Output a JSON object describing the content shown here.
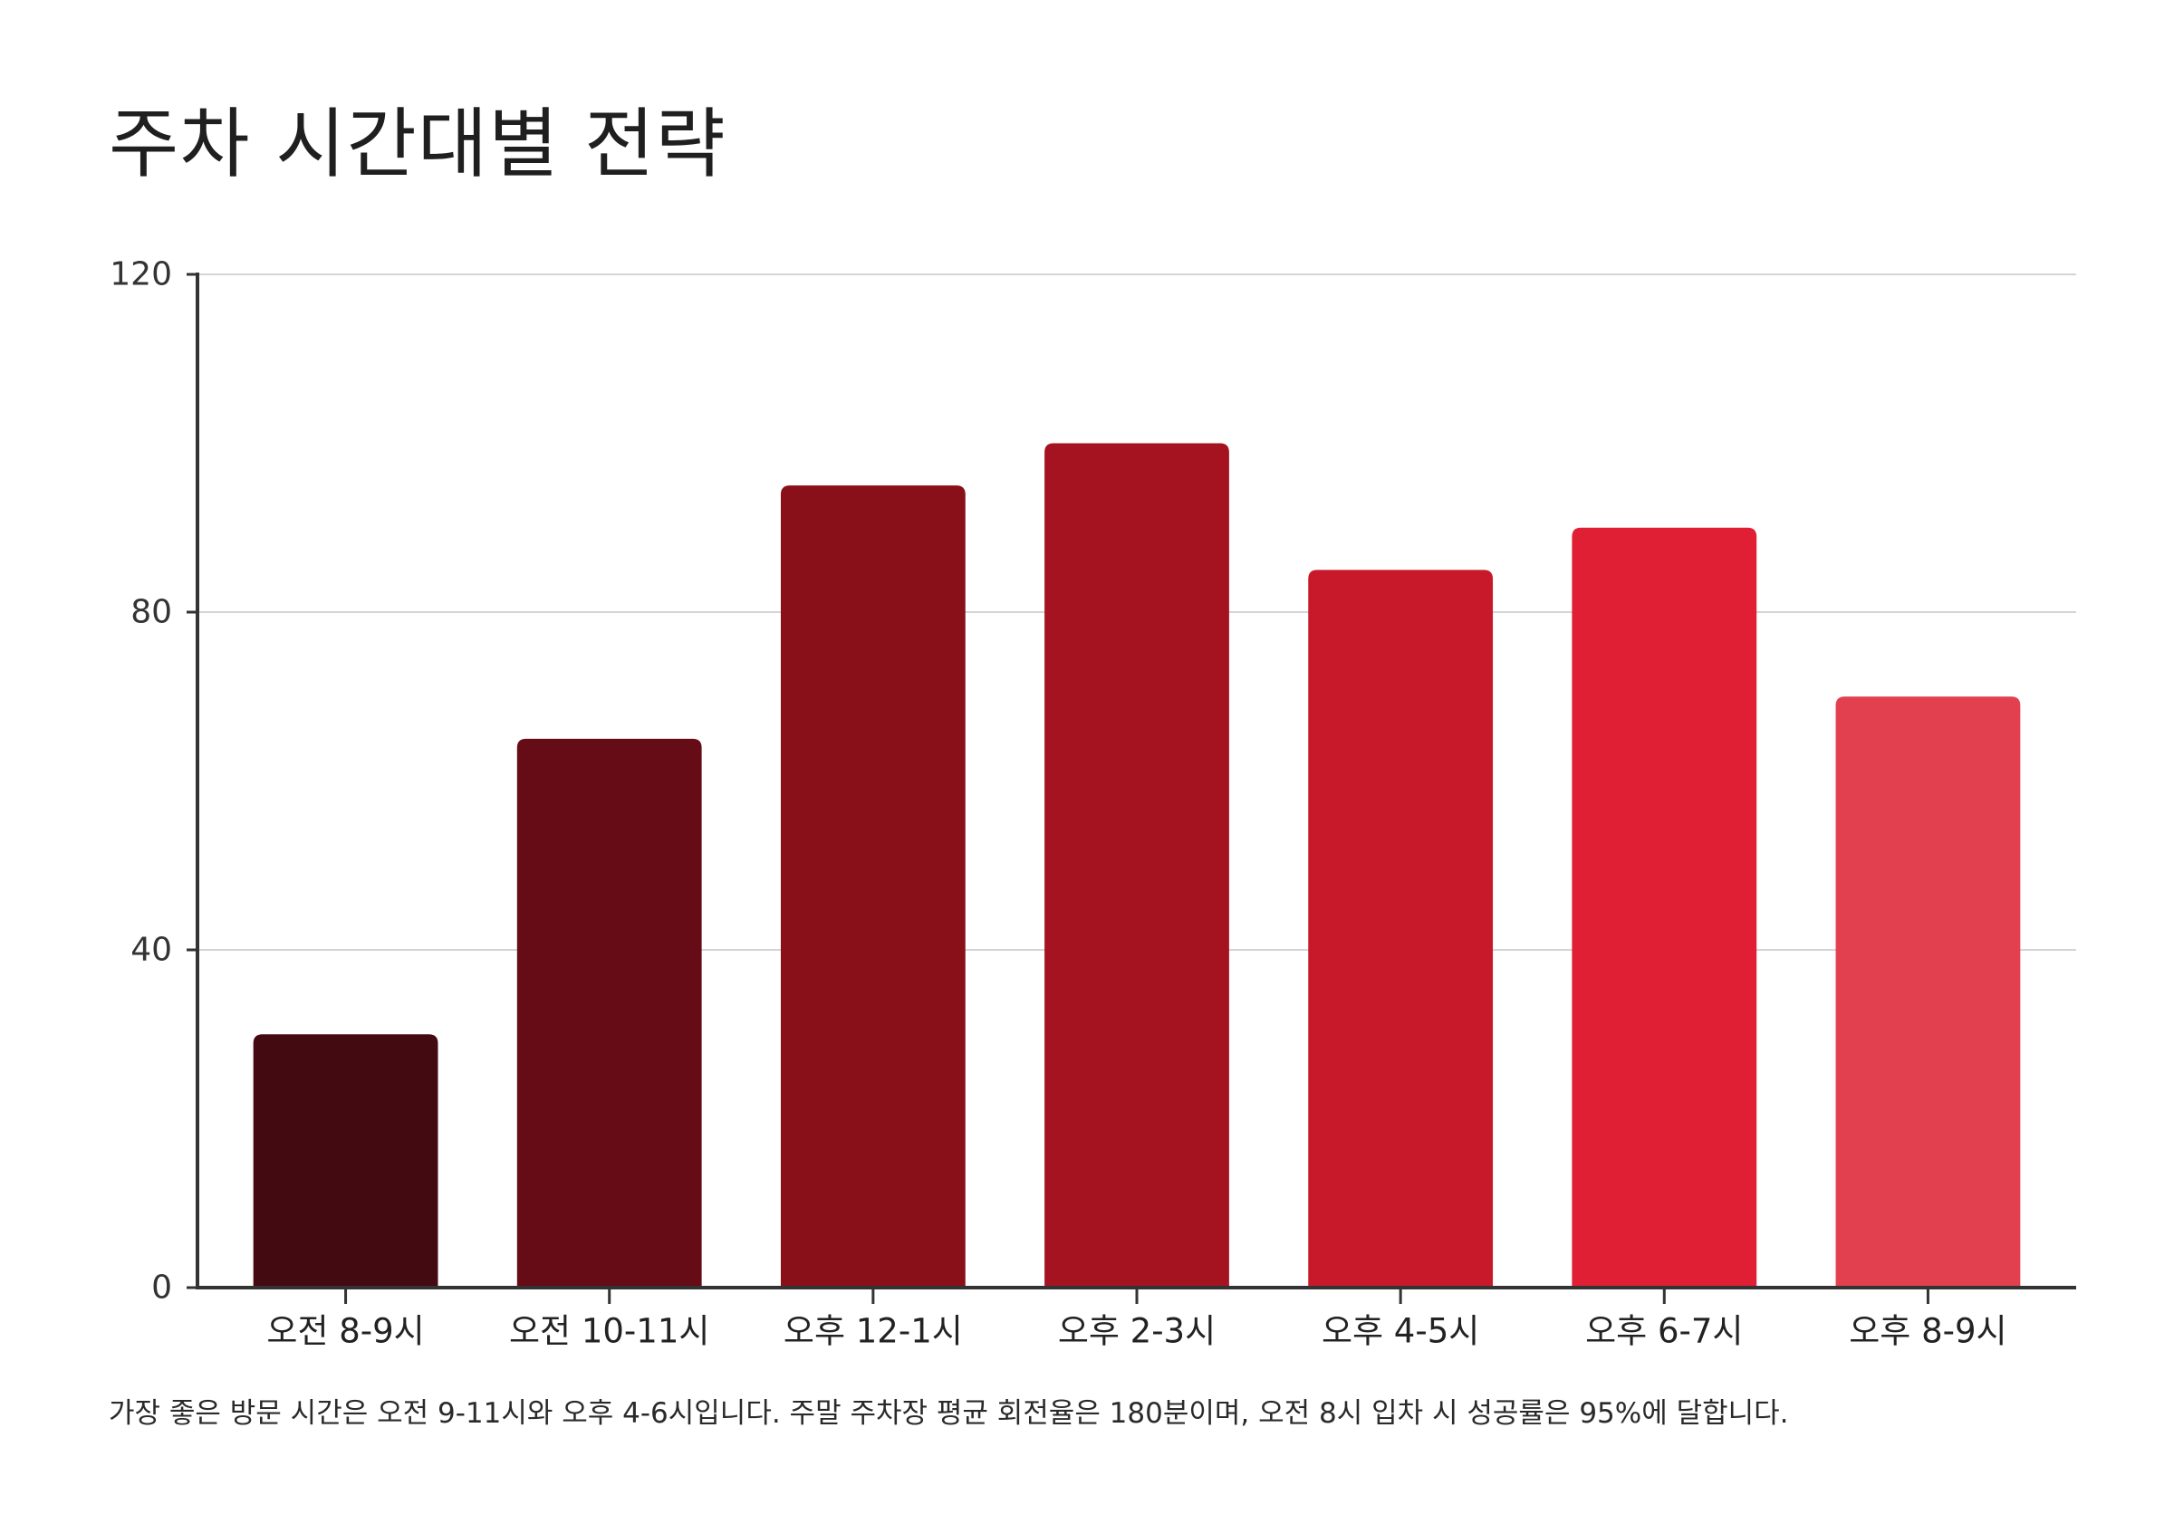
{
  "title": "주차 시간대별 전략",
  "caption": "가장 좋은 방문 시간은 오전 9-11시와 오후 4-6시입니다. 주말 주차장 평균 회전율은 180분이며, 오전 8시 입차 시 성공률은 95%에 달합니다.",
  "chart_data": {
    "type": "bar",
    "title": "주차 시간대별 전략",
    "xlabel": "",
    "ylabel": "",
    "categories": [
      "오전 8-9시",
      "오전 10-11시",
      "오후 12-1시",
      "오후 2-3시",
      "오후 4-5시",
      "오후 6-7시",
      "오후 8-9시"
    ],
    "values": [
      30,
      65,
      95,
      100,
      85,
      90,
      70
    ],
    "ylim": [
      0,
      120
    ],
    "yticks": [
      0,
      40,
      80,
      120
    ],
    "grid": true,
    "legend": "none",
    "bar_colors": [
      "#430a11",
      "#650c17",
      "#891019",
      "#a51321",
      "#c8192b",
      "#e11f34",
      "#e2404f"
    ]
  }
}
